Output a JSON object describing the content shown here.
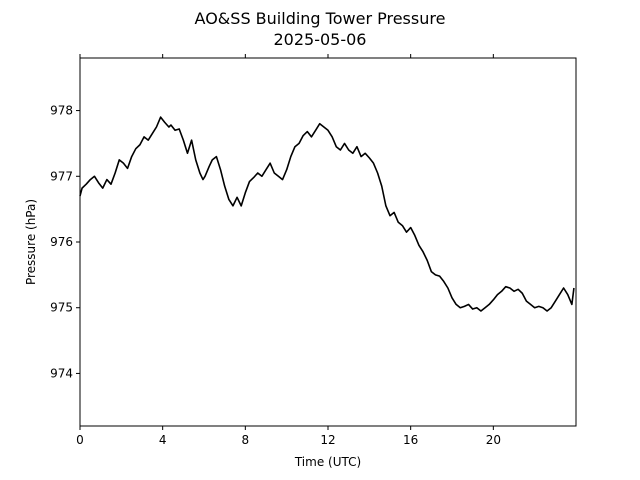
{
  "chart_data": {
    "type": "line",
    "title": "AO&SS Building Tower Pressure",
    "subtitle": "2025-05-06",
    "xlabel": "Time (UTC)",
    "ylabel": "Pressure (hPa)",
    "xlim": [
      0,
      24
    ],
    "ylim": [
      973.2,
      978.8
    ],
    "xticks": [
      0,
      4,
      8,
      12,
      16,
      20
    ],
    "yticks": [
      974,
      975,
      976,
      977,
      978
    ],
    "grid": false,
    "line_color": "#000000",
    "series": [
      {
        "x": [
          0,
          0.1,
          0.3,
          0.5,
          0.7,
          0.9,
          1.1,
          1.3,
          1.5,
          1.7,
          1.9,
          2.1,
          2.3,
          2.5,
          2.7,
          2.9,
          3.1,
          3.3,
          3.5,
          3.7,
          3.9,
          4.1,
          4.3,
          4.4,
          4.6,
          4.8,
          5.0,
          5.2,
          5.4,
          5.6,
          5.8,
          5.95,
          6.05,
          6.25,
          6.4,
          6.6,
          6.8,
          7.0,
          7.2,
          7.4,
          7.6,
          7.8,
          8.0,
          8.2,
          8.4,
          8.6,
          8.8,
          9.0,
          9.2,
          9.4,
          9.6,
          9.8,
          10.0,
          10.2,
          10.4,
          10.6,
          10.8,
          11.0,
          11.2,
          11.4,
          11.6,
          11.8,
          12.0,
          12.2,
          12.4,
          12.6,
          12.8,
          13.0,
          13.2,
          13.4,
          13.6,
          13.8,
          14.0,
          14.2,
          14.4,
          14.6,
          14.8,
          15.0,
          15.2,
          15.4,
          15.6,
          15.8,
          16.0,
          16.2,
          16.4,
          16.6,
          16.8,
          17.0,
          17.2,
          17.4,
          17.6,
          17.8,
          18.0,
          18.2,
          18.4,
          18.6,
          18.8,
          19.0,
          19.2,
          19.4,
          19.6,
          19.8,
          20.0,
          20.2,
          20.4,
          20.6,
          20.8,
          21.0,
          21.2,
          21.4,
          21.6,
          21.8,
          22.0,
          22.2,
          22.4,
          22.6,
          22.8,
          23.0,
          23.2,
          23.4,
          23.6,
          23.8,
          23.9
        ],
        "y": [
          976.7,
          976.82,
          976.88,
          976.95,
          977.0,
          976.9,
          976.82,
          976.95,
          976.88,
          977.05,
          977.25,
          977.2,
          977.12,
          977.3,
          977.42,
          977.48,
          977.6,
          977.55,
          977.65,
          977.75,
          977.9,
          977.82,
          977.75,
          977.78,
          977.7,
          977.72,
          977.55,
          977.35,
          977.55,
          977.25,
          977.05,
          976.95,
          977.0,
          977.15,
          977.25,
          977.3,
          977.1,
          976.85,
          976.65,
          976.55,
          976.68,
          976.55,
          976.75,
          976.92,
          976.98,
          977.05,
          977.0,
          977.1,
          977.2,
          977.05,
          977.0,
          976.95,
          977.1,
          977.3,
          977.45,
          977.5,
          977.62,
          977.68,
          977.6,
          977.7,
          977.8,
          977.75,
          977.7,
          977.6,
          977.45,
          977.4,
          977.5,
          977.4,
          977.35,
          977.45,
          977.3,
          977.35,
          977.28,
          977.2,
          977.05,
          976.85,
          976.55,
          976.4,
          976.45,
          976.3,
          976.25,
          976.15,
          976.22,
          976.1,
          975.95,
          975.85,
          975.72,
          975.55,
          975.5,
          975.48,
          975.4,
          975.3,
          975.15,
          975.05,
          975.0,
          975.02,
          975.05,
          974.98,
          975.0,
          974.95,
          975.0,
          975.05,
          975.12,
          975.2,
          975.25,
          975.32,
          975.3,
          975.25,
          975.28,
          975.22,
          975.1,
          975.05,
          975.0,
          975.02,
          975.0,
          974.95,
          975.0,
          975.1,
          975.2,
          975.3,
          975.2,
          975.05,
          975.3
        ]
      }
    ]
  }
}
